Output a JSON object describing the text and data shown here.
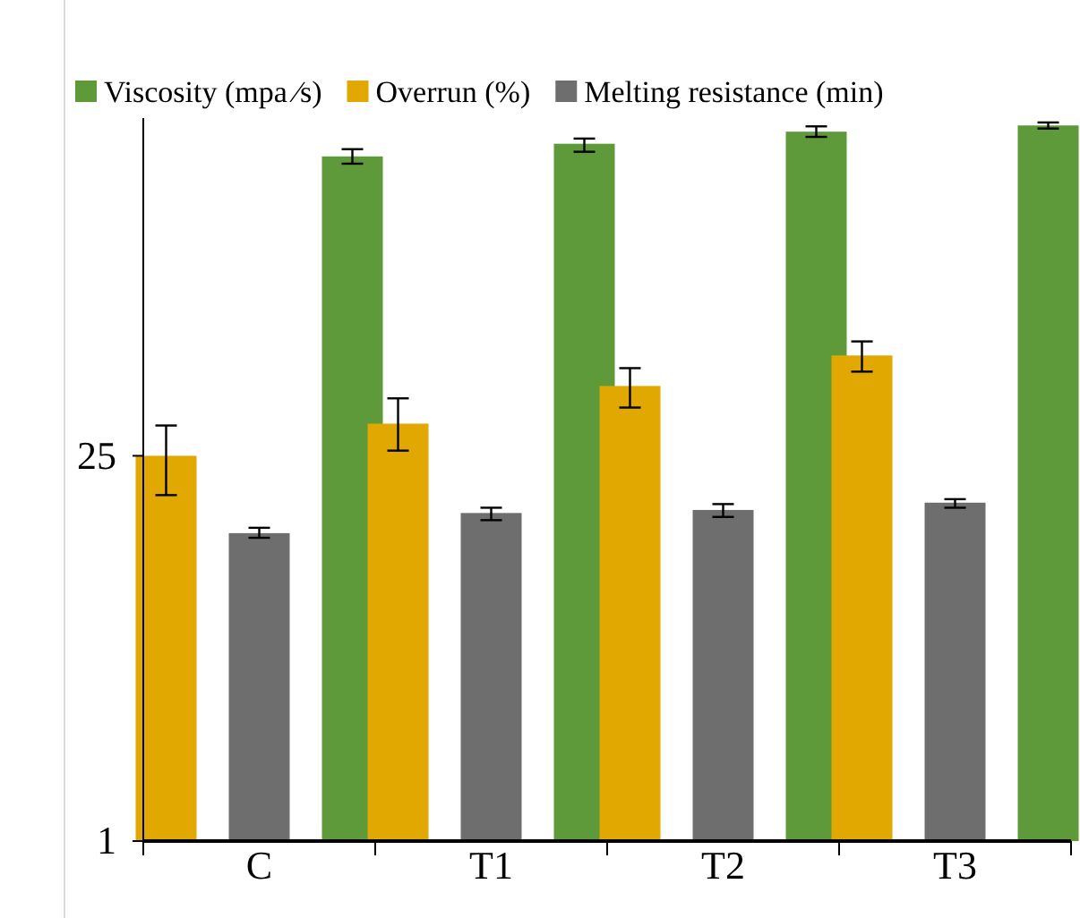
{
  "chart_data": {
    "type": "bar",
    "categories": [
      "C",
      "T1",
      "T2",
      "T3"
    ],
    "log": true,
    "ylim": [
      1,
      420
    ],
    "yticks": [
      1,
      25
    ],
    "legend": "top",
    "grid": false,
    "series": [
      {
        "name": "Viscosity  (mpa ⁄s)",
        "color": "#5e9a3a",
        "values": [
          305,
          339,
          375,
          395
        ],
        "errors": [
          [
            287,
            324
          ],
          [
            317,
            354
          ],
          [
            359,
            392
          ],
          [
            385,
            405
          ]
        ]
      },
      {
        "name": "Overrun (%)",
        "color": "#e0a800",
        "values": [
          25,
          32.7,
          44.8,
          57.8
        ],
        "errors": [
          [
            18,
            32.2
          ],
          [
            26.1,
            40.4
          ],
          [
            37.4,
            52
          ],
          [
            50.5,
            65
          ]
        ]
      },
      {
        "name": "Melting resistance (min)",
        "color": "#6e6e6e",
        "values": [
          13.1,
          15.5,
          15.9,
          16.9
        ],
        "errors": [
          [
            12.6,
            13.7
          ],
          [
            14.6,
            16.2
          ],
          [
            15,
            16.7
          ],
          [
            16.2,
            17.4
          ]
        ]
      }
    ]
  }
}
